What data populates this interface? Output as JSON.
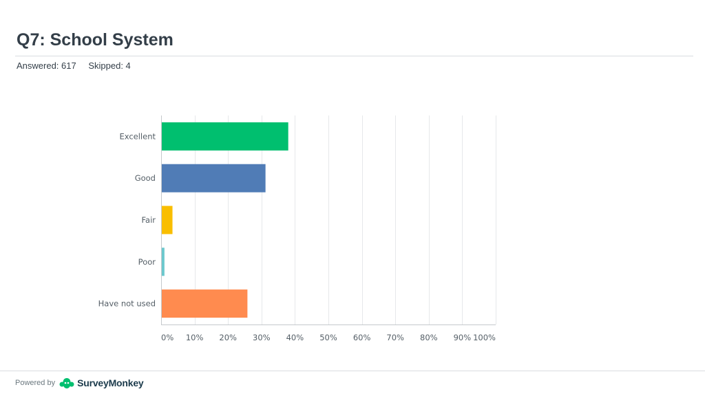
{
  "header": {
    "title": "Q7: School System",
    "answered": "Answered: 617",
    "skipped": "Skipped: 4"
  },
  "chart_data": {
    "type": "bar",
    "orientation": "horizontal",
    "categories": [
      "Excellent",
      "Good",
      "Fair",
      "Poor",
      "Have not used"
    ],
    "values": [
      38,
      31.2,
      3.4,
      1,
      25.8
    ],
    "colors": [
      "#00bf6f",
      "#507cb6",
      "#f9be00",
      "#6bc8cd",
      "#ff8b4f"
    ],
    "xlim": [
      0,
      100
    ],
    "xticks": [
      "0%",
      "10%",
      "20%",
      "30%",
      "40%",
      "50%",
      "60%",
      "70%",
      "80%",
      "90%",
      "100%"
    ],
    "grid": true
  },
  "footer": {
    "powered_by": "Powered by",
    "brand": "SurveyMonkey"
  }
}
